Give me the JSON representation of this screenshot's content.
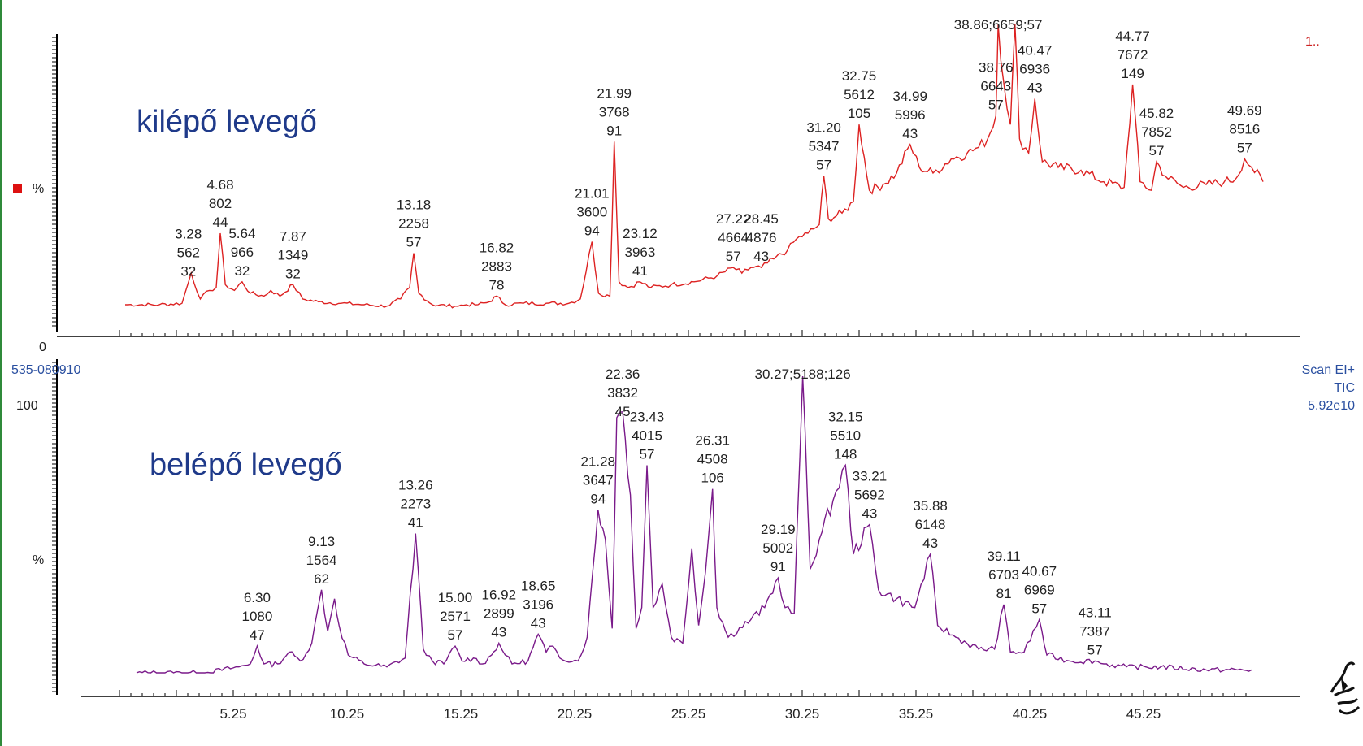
{
  "colors": {
    "top_trace": "#dd2222",
    "bottom_trace": "#7a1a8a",
    "label_blue": "#1f3a8a",
    "accent_green": "#2f8a3a"
  },
  "icons": [
    "logo-icon"
  ],
  "top_right_mark": "1..",
  "header_left": "535-080910",
  "header_right_lines": [
    "Scan EI+",
    "TIC",
    "5.92e10"
  ],
  "chart_data": [
    {
      "type": "line",
      "panel": "top",
      "annotation_title": "kilépő levegő",
      "y_tick_labels": [
        "%",
        "0"
      ],
      "x": [
        0.5,
        2.0,
        3.0,
        3.4,
        3.8,
        4.2,
        4.5,
        4.68,
        4.9,
        5.3,
        5.64,
        6.0,
        6.6,
        6.9,
        7.3,
        7.87,
        8.3,
        9.0,
        10.0,
        11.0,
        12.0,
        12.6,
        13.0,
        13.18,
        13.4,
        14.0,
        15.0,
        15.5,
        16.0,
        16.5,
        16.82,
        17.2,
        18.0,
        19.0,
        20.0,
        20.5,
        21.01,
        21.3,
        21.8,
        21.99,
        22.2,
        22.6,
        23.12,
        23.6,
        24.5,
        25.5,
        26.5,
        27.22,
        27.6,
        28.0,
        28.45,
        29.0,
        29.6,
        30.0,
        30.5,
        31.0,
        31.2,
        31.4,
        32.0,
        32.5,
        32.75,
        33.2,
        33.8,
        34.4,
        34.99,
        35.4,
        36.0,
        36.8,
        37.5,
        38.0,
        38.4,
        38.76,
        38.86,
        39.1,
        39.4,
        39.6,
        39.8,
        40.2,
        40.47,
        40.8,
        41.5,
        42.5,
        43.5,
        44.4,
        44.77,
        45.1,
        45.6,
        45.82,
        46.2,
        47.0,
        48.0,
        48.8,
        49.3,
        49.69,
        50.0,
        50.5
      ],
      "y": [
        2,
        2,
        2.5,
        13,
        4,
        7,
        8,
        27,
        9,
        7,
        10,
        6,
        5,
        7,
        5,
        9,
        4,
        3,
        2.5,
        2,
        1.5,
        4,
        8,
        20,
        6,
        2,
        1.5,
        2,
        2,
        3,
        5,
        2,
        2.5,
        2.5,
        2.5,
        4,
        24,
        6,
        5,
        59,
        10,
        8,
        10,
        8,
        9,
        10,
        12,
        15,
        13,
        15,
        15,
        18,
        21,
        25,
        27,
        30,
        47,
        32,
        34,
        38,
        65,
        42,
        44,
        48,
        58,
        50,
        48,
        53,
        55,
        57,
        60,
        68,
        100,
        80,
        65,
        100,
        60,
        55,
        74,
        52,
        50,
        49,
        45,
        43,
        79,
        45,
        42,
        52,
        47,
        43,
        44,
        45,
        46,
        53,
        50,
        45
      ],
      "peak_labels": [
        [
          "3.28",
          "562",
          "32"
        ],
        [
          "4.68",
          "802",
          "44"
        ],
        [
          "5.64",
          "966",
          "32"
        ],
        [
          "7.87",
          "1349",
          "32"
        ],
        [
          "13.18",
          "2258",
          "57"
        ],
        [
          "16.82",
          "2883",
          "78"
        ],
        [
          "21.01",
          "3600",
          "94"
        ],
        [
          "21.99",
          "3768",
          "91"
        ],
        [
          "23.12",
          "3963",
          "41"
        ],
        [
          "27.22",
          "4664",
          "57"
        ],
        [
          "28.45",
          "4876",
          "43"
        ],
        [
          "31.20",
          "5347",
          "57"
        ],
        [
          "32.75",
          "5612",
          "105"
        ],
        [
          "34.99",
          "5996",
          "43"
        ],
        [
          "38.76",
          "6643",
          "57"
        ],
        [
          "38.86;6659;57"
        ],
        [
          "40.47",
          "6936",
          "43"
        ],
        [
          "44.77",
          "7672",
          "149"
        ],
        [
          "45.82",
          "7852",
          "57"
        ],
        [
          "49.69",
          "8516",
          "57"
        ]
      ]
    },
    {
      "type": "line",
      "panel": "bottom",
      "annotation_title": "belépő levegő",
      "y_tick_labels": [
        "100",
        "%"
      ],
      "ylim": [
        0,
        100
      ],
      "x_tick_labels": [
        "5.25",
        "10.25",
        "15.25",
        "20.25",
        "25.25",
        "30.25",
        "35.25",
        "40.25",
        "45.25"
      ],
      "x_ticks": [
        5.25,
        10.25,
        15.25,
        20.25,
        25.25,
        30.25,
        35.25,
        40.25,
        45.25
      ],
      "x": [
        1.0,
        4.0,
        5.5,
        6.0,
        6.3,
        6.6,
        7.2,
        7.7,
        8.2,
        8.7,
        9.13,
        9.4,
        9.7,
        9.9,
        10.3,
        11.0,
        12.0,
        12.8,
        13.26,
        13.6,
        14.0,
        14.5,
        15.0,
        15.3,
        15.8,
        16.2,
        16.6,
        16.92,
        17.2,
        17.5,
        18.2,
        18.65,
        19.0,
        19.3,
        19.6,
        20.4,
        20.8,
        21.28,
        21.6,
        21.9,
        22.1,
        22.36,
        22.7,
        22.95,
        23.2,
        23.43,
        23.7,
        24.1,
        24.5,
        25.0,
        25.4,
        25.7,
        26.0,
        26.31,
        26.5,
        27.0,
        28.0,
        28.6,
        29.19,
        29.5,
        29.9,
        30.27,
        30.6,
        31.0,
        31.6,
        32.15,
        32.5,
        33.21,
        33.6,
        34.4,
        35.2,
        35.88,
        36.2,
        37.0,
        38.0,
        38.7,
        39.11,
        39.4,
        40.0,
        40.67,
        41.0,
        42.0,
        43.11,
        43.5,
        44.5,
        46.0,
        48.0,
        50.0
      ],
      "y": [
        0,
        0,
        2,
        3,
        9,
        3,
        3,
        7,
        4,
        10,
        28,
        14,
        25,
        16,
        6,
        3,
        2,
        5,
        47,
        8,
        4,
        3,
        9,
        4,
        5,
        3,
        6,
        10,
        6,
        3,
        4,
        13,
        7,
        9,
        5,
        4,
        12,
        55,
        45,
        15,
        86,
        88,
        60,
        15,
        22,
        70,
        22,
        30,
        12,
        10,
        42,
        16,
        34,
        62,
        22,
        12,
        18,
        22,
        32,
        22,
        20,
        100,
        35,
        45,
        58,
        70,
        40,
        50,
        28,
        25,
        22,
        40,
        16,
        12,
        8,
        8,
        23,
        7,
        7,
        18,
        6,
        4,
        4,
        3,
        2,
        2,
        1,
        1
      ]
    },
    {
      "type": "text",
      "panel": "bottom",
      "peak_labels": [
        [
          "6.30",
          "1080",
          "47"
        ],
        [
          "9.13",
          "1564",
          "62"
        ],
        [
          "13.26",
          "2273",
          "41"
        ],
        [
          "15.00",
          "2571",
          "57"
        ],
        [
          "16.92",
          "2899",
          "43"
        ],
        [
          "18.65",
          "3196",
          "43"
        ],
        [
          "21.28",
          "3647",
          "94"
        ],
        [
          "22.36",
          "3832",
          "45"
        ],
        [
          "23.43",
          "4015",
          "57"
        ],
        [
          "26.31",
          "4508",
          "106"
        ],
        [
          "29.19",
          "5002",
          "91"
        ],
        [
          "30.27;5188;126"
        ],
        [
          "32.15",
          "5510",
          "148"
        ],
        [
          "33.21",
          "5692",
          "43"
        ],
        [
          "35.88",
          "6148",
          "43"
        ],
        [
          "39.11",
          "6703",
          "81"
        ],
        [
          "40.67",
          "6969",
          "57"
        ],
        [
          "43.11",
          "7387",
          "57"
        ]
      ]
    }
  ]
}
